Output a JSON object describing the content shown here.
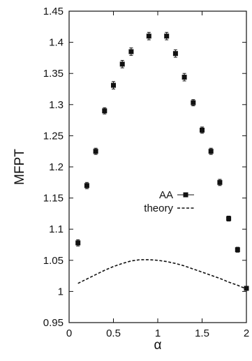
{
  "chart_data": {
    "type": "scatter",
    "title": "",
    "xlabel": "α",
    "ylabel": "MFPT",
    "xlim": [
      0,
      2
    ],
    "ylim": [
      0.95,
      1.45
    ],
    "xticks": [
      0,
      0.5,
      1,
      1.5,
      2
    ],
    "xtick_labels": [
      "0",
      "0.5",
      "1",
      "1.5",
      "2"
    ],
    "yticks": [
      0.95,
      1,
      1.05,
      1.1,
      1.15,
      1.2,
      1.25,
      1.3,
      1.35,
      1.4,
      1.45
    ],
    "ytick_labels": [
      "0.95",
      "1",
      "1.05",
      "1.1",
      "1.15",
      "1.2",
      "1.25",
      "1.3",
      "1.35",
      "1.4",
      "1.45"
    ],
    "grid": false,
    "legend_position": "middle-right",
    "series": [
      {
        "name": "AA",
        "style": "points-with-errorbars",
        "color": "#111111",
        "x": [
          0.1,
          0.2,
          0.3,
          0.4,
          0.5,
          0.6,
          0.7,
          0.9,
          1.1,
          1.2,
          1.3,
          1.4,
          1.5,
          1.6,
          1.7,
          1.8,
          1.9,
          2.0
        ],
        "y": [
          1.078,
          1.17,
          1.225,
          1.29,
          1.331,
          1.365,
          1.385,
          1.41,
          1.41,
          1.382,
          1.344,
          1.303,
          1.259,
          1.225,
          1.175,
          1.117,
          1.067,
          1.005
        ],
        "yerr": [
          0.005,
          0.005,
          0.005,
          0.005,
          0.006,
          0.006,
          0.006,
          0.006,
          0.006,
          0.006,
          0.006,
          0.005,
          0.005,
          0.005,
          0.005,
          0.004,
          0.004,
          0.003
        ]
      },
      {
        "name": "theory",
        "style": "dashed-line",
        "color": "#111111",
        "x": [
          0.1,
          0.2,
          0.3,
          0.4,
          0.5,
          0.6,
          0.7,
          0.8,
          0.9,
          1.0,
          1.1,
          1.2,
          1.3,
          1.4,
          1.5,
          1.6,
          1.7,
          1.8,
          1.9,
          2.0
        ],
        "y": [
          1.013,
          1.02,
          1.027,
          1.034,
          1.04,
          1.045,
          1.049,
          1.051,
          1.051,
          1.05,
          1.048,
          1.045,
          1.041,
          1.036,
          1.031,
          1.026,
          1.021,
          1.015,
          1.01,
          1.004
        ]
      }
    ]
  }
}
